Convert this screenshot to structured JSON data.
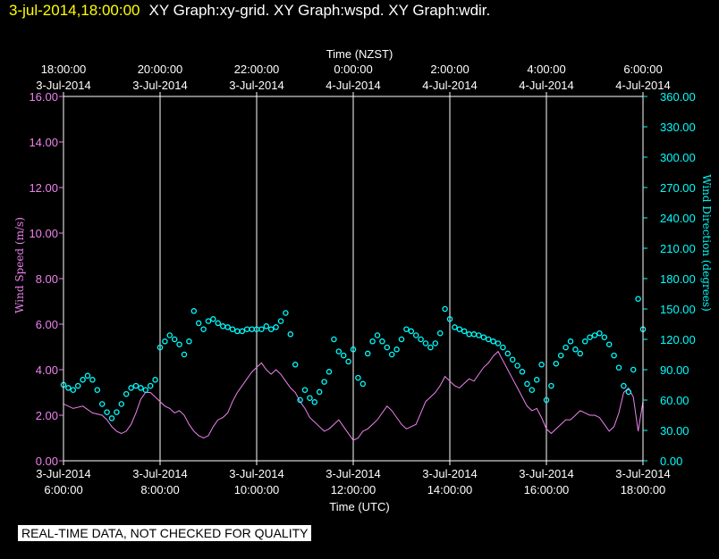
{
  "header": {
    "timestamp": "3-jul-2014,18:00:00",
    "graph_titles": "XY Graph:xy-grid.  XY Graph:wspd.  XY Graph:wdir."
  },
  "footer": {
    "notice": "REAL-TIME DATA, NOT CHECKED FOR QUALITY"
  },
  "colors": {
    "wspd": "#ee82ee",
    "wdir": "#00ffff",
    "grid": "#ffffff",
    "frame": "#ffffff",
    "background": "#000000"
  },
  "chart_data": {
    "type": "scatter",
    "title": "",
    "top_axis": {
      "label": "Time (NZST)",
      "ticks": [
        {
          "time": "18:00:00",
          "date": "3-Jul-2014",
          "x": 6
        },
        {
          "time": "20:00:00",
          "date": "3-Jul-2014",
          "x": 8
        },
        {
          "time": "22:00:00",
          "date": "3-Jul-2014",
          "x": 10
        },
        {
          "time": "0:00:00",
          "date": "4-Jul-2014",
          "x": 12
        },
        {
          "time": "2:00:00",
          "date": "4-Jul-2014",
          "x": 14
        },
        {
          "time": "4:00:00",
          "date": "4-Jul-2014",
          "x": 16
        },
        {
          "time": "6:00:00",
          "date": "4-Jul-2014",
          "x": 18
        }
      ]
    },
    "bottom_axis": {
      "label": "Time (UTC)",
      "ticks": [
        {
          "date": "3-Jul-2014",
          "time": "6:00:00",
          "x": 6
        },
        {
          "date": "3-Jul-2014",
          "time": "8:00:00",
          "x": 8
        },
        {
          "date": "3-Jul-2014",
          "time": "10:00:00",
          "x": 10
        },
        {
          "date": "3-Jul-2014",
          "time": "12:00:00",
          "x": 12
        },
        {
          "date": "3-Jul-2014",
          "time": "14:00:00",
          "x": 14
        },
        {
          "date": "3-Jul-2014",
          "time": "16:00:00",
          "x": 16
        },
        {
          "date": "3-Jul-2014",
          "time": "18:00:00",
          "x": 18
        }
      ]
    },
    "xlim": [
      6,
      18
    ],
    "y_left": {
      "label": "Wind Speed (m/s)",
      "range": [
        0,
        16
      ],
      "ticks": [
        "0.00",
        "2.00",
        "4.00",
        "6.00",
        "8.00",
        "10.00",
        "12.00",
        "14.00",
        "16.00"
      ]
    },
    "y_right": {
      "label": "Wind Direction (degrees)",
      "range": [
        0,
        360
      ],
      "ticks": [
        "0.00",
        "30.00",
        "60.00",
        "90.00",
        "120.00",
        "150.00",
        "180.00",
        "210.00",
        "240.00",
        "270.00",
        "300.00",
        "330.00",
        "360.00"
      ]
    },
    "grid": {
      "vertical": true,
      "horizontal": false
    },
    "series": [
      {
        "key": "wspd",
        "style": "line",
        "axis": "left",
        "points": [
          [
            6.0,
            2.5
          ],
          [
            6.2,
            2.3
          ],
          [
            6.4,
            2.4
          ],
          [
            6.6,
            2.1
          ],
          [
            6.8,
            2.0
          ],
          [
            6.9,
            1.8
          ],
          [
            7.0,
            1.5
          ],
          [
            7.1,
            1.3
          ],
          [
            7.2,
            1.2
          ],
          [
            7.3,
            1.3
          ],
          [
            7.4,
            1.6
          ],
          [
            7.5,
            2.1
          ],
          [
            7.6,
            2.7
          ],
          [
            7.7,
            3.0
          ],
          [
            7.8,
            3.0
          ],
          [
            7.9,
            2.8
          ],
          [
            8.0,
            2.6
          ],
          [
            8.1,
            2.4
          ],
          [
            8.2,
            2.3
          ],
          [
            8.3,
            2.1
          ],
          [
            8.4,
            2.2
          ],
          [
            8.5,
            2.0
          ],
          [
            8.6,
            1.6
          ],
          [
            8.7,
            1.3
          ],
          [
            8.8,
            1.1
          ],
          [
            8.9,
            1.0
          ],
          [
            9.0,
            1.1
          ],
          [
            9.1,
            1.5
          ],
          [
            9.2,
            1.8
          ],
          [
            9.3,
            1.9
          ],
          [
            9.4,
            2.1
          ],
          [
            9.5,
            2.6
          ],
          [
            9.6,
            3.0
          ],
          [
            9.7,
            3.3
          ],
          [
            9.8,
            3.6
          ],
          [
            9.9,
            3.9
          ],
          [
            10.0,
            4.1
          ],
          [
            10.1,
            4.3
          ],
          [
            10.2,
            4.0
          ],
          [
            10.3,
            3.8
          ],
          [
            10.4,
            4.0
          ],
          [
            10.5,
            3.8
          ],
          [
            10.6,
            3.5
          ],
          [
            10.7,
            3.2
          ],
          [
            10.8,
            3.0
          ],
          [
            10.9,
            2.6
          ],
          [
            11.0,
            2.3
          ],
          [
            11.1,
            1.9
          ],
          [
            11.2,
            1.7
          ],
          [
            11.3,
            1.5
          ],
          [
            11.4,
            1.3
          ],
          [
            11.5,
            1.4
          ],
          [
            11.6,
            1.6
          ],
          [
            11.7,
            1.8
          ],
          [
            11.8,
            1.5
          ],
          [
            11.9,
            1.2
          ],
          [
            12.0,
            0.9
          ],
          [
            12.1,
            1.0
          ],
          [
            12.2,
            1.3
          ],
          [
            12.3,
            1.4
          ],
          [
            12.4,
            1.6
          ],
          [
            12.5,
            1.8
          ],
          [
            12.6,
            2.1
          ],
          [
            12.7,
            2.4
          ],
          [
            12.8,
            2.2
          ],
          [
            12.9,
            1.9
          ],
          [
            13.0,
            1.6
          ],
          [
            13.1,
            1.4
          ],
          [
            13.2,
            1.5
          ],
          [
            13.3,
            1.6
          ],
          [
            13.4,
            2.1
          ],
          [
            13.5,
            2.6
          ],
          [
            13.6,
            2.8
          ],
          [
            13.7,
            3.0
          ],
          [
            13.8,
            3.3
          ],
          [
            13.9,
            3.7
          ],
          [
            14.0,
            3.5
          ],
          [
            14.1,
            3.3
          ],
          [
            14.2,
            3.2
          ],
          [
            14.3,
            3.4
          ],
          [
            14.4,
            3.6
          ],
          [
            14.5,
            3.5
          ],
          [
            14.6,
            3.8
          ],
          [
            14.7,
            4.1
          ],
          [
            14.8,
            4.3
          ],
          [
            14.9,
            4.6
          ],
          [
            15.0,
            4.8
          ],
          [
            15.1,
            4.4
          ],
          [
            15.2,
            4.0
          ],
          [
            15.3,
            3.6
          ],
          [
            15.4,
            3.2
          ],
          [
            15.5,
            2.8
          ],
          [
            15.6,
            2.4
          ],
          [
            15.7,
            2.2
          ],
          [
            15.8,
            2.3
          ],
          [
            15.9,
            1.9
          ],
          [
            16.0,
            1.4
          ],
          [
            16.1,
            1.2
          ],
          [
            16.2,
            1.4
          ],
          [
            16.3,
            1.6
          ],
          [
            16.4,
            1.8
          ],
          [
            16.5,
            1.8
          ],
          [
            16.6,
            2.0
          ],
          [
            16.7,
            2.2
          ],
          [
            16.8,
            2.1
          ],
          [
            16.9,
            2.0
          ],
          [
            17.0,
            2.0
          ],
          [
            17.1,
            1.9
          ],
          [
            17.2,
            1.6
          ],
          [
            17.3,
            1.3
          ],
          [
            17.4,
            1.5
          ],
          [
            17.5,
            2.1
          ],
          [
            17.6,
            3.0
          ],
          [
            17.7,
            3.2
          ],
          [
            17.8,
            2.8
          ],
          [
            17.9,
            1.3
          ],
          [
            18.0,
            2.6
          ]
        ]
      },
      {
        "key": "wdir",
        "style": "markers",
        "axis": "right",
        "points": [
          [
            6.0,
            75
          ],
          [
            6.1,
            72
          ],
          [
            6.2,
            70
          ],
          [
            6.3,
            74
          ],
          [
            6.4,
            80
          ],
          [
            6.5,
            84
          ],
          [
            6.6,
            80
          ],
          [
            6.7,
            70
          ],
          [
            6.8,
            56
          ],
          [
            6.9,
            48
          ],
          [
            7.0,
            42
          ],
          [
            7.1,
            48
          ],
          [
            7.2,
            56
          ],
          [
            7.3,
            66
          ],
          [
            7.4,
            72
          ],
          [
            7.5,
            74
          ],
          [
            7.6,
            72
          ],
          [
            7.7,
            70
          ],
          [
            7.8,
            74
          ],
          [
            7.9,
            80
          ],
          [
            8.0,
            112
          ],
          [
            8.1,
            118
          ],
          [
            8.2,
            124
          ],
          [
            8.3,
            120
          ],
          [
            8.4,
            115
          ],
          [
            8.5,
            105
          ],
          [
            8.6,
            118
          ],
          [
            8.7,
            148
          ],
          [
            8.8,
            136
          ],
          [
            8.9,
            130
          ],
          [
            9.0,
            138
          ],
          [
            9.1,
            140
          ],
          [
            9.2,
            136
          ],
          [
            9.3,
            133
          ],
          [
            9.4,
            132
          ],
          [
            9.5,
            130
          ],
          [
            9.6,
            128
          ],
          [
            9.7,
            128
          ],
          [
            9.8,
            130
          ],
          [
            9.9,
            130
          ],
          [
            10.0,
            130
          ],
          [
            10.1,
            130
          ],
          [
            10.2,
            133
          ],
          [
            10.3,
            130
          ],
          [
            10.4,
            132
          ],
          [
            10.5,
            138
          ],
          [
            10.6,
            146
          ],
          [
            10.7,
            125
          ],
          [
            10.8,
            95
          ],
          [
            10.9,
            60
          ],
          [
            11.0,
            70
          ],
          [
            11.1,
            62
          ],
          [
            11.2,
            58
          ],
          [
            11.3,
            68
          ],
          [
            11.4,
            78
          ],
          [
            11.5,
            88
          ],
          [
            11.6,
            120
          ],
          [
            11.7,
            108
          ],
          [
            11.8,
            104
          ],
          [
            11.9,
            98
          ],
          [
            12.0,
            110
          ],
          [
            12.1,
            82
          ],
          [
            12.2,
            76
          ],
          [
            12.3,
            106
          ],
          [
            12.4,
            118
          ],
          [
            12.5,
            124
          ],
          [
            12.6,
            118
          ],
          [
            12.7,
            112
          ],
          [
            12.8,
            105
          ],
          [
            12.9,
            110
          ],
          [
            13.0,
            120
          ],
          [
            13.1,
            130
          ],
          [
            13.2,
            128
          ],
          [
            13.3,
            124
          ],
          [
            13.4,
            120
          ],
          [
            13.5,
            116
          ],
          [
            13.6,
            112
          ],
          [
            13.7,
            116
          ],
          [
            13.8,
            126
          ],
          [
            13.9,
            150
          ],
          [
            14.0,
            140
          ],
          [
            14.1,
            132
          ],
          [
            14.2,
            130
          ],
          [
            14.3,
            128
          ],
          [
            14.4,
            125
          ],
          [
            14.5,
            125
          ],
          [
            14.6,
            124
          ],
          [
            14.7,
            122
          ],
          [
            14.8,
            120
          ],
          [
            14.9,
            118
          ],
          [
            15.0,
            116
          ],
          [
            15.1,
            112
          ],
          [
            15.2,
            106
          ],
          [
            15.3,
            100
          ],
          [
            15.4,
            94
          ],
          [
            15.5,
            88
          ],
          [
            15.6,
            76
          ],
          [
            15.7,
            70
          ],
          [
            15.8,
            80
          ],
          [
            15.9,
            95
          ],
          [
            16.0,
            60
          ],
          [
            16.1,
            74
          ],
          [
            16.2,
            96
          ],
          [
            16.3,
            104
          ],
          [
            16.4,
            112
          ],
          [
            16.5,
            118
          ],
          [
            16.6,
            110
          ],
          [
            16.7,
            106
          ],
          [
            16.8,
            118
          ],
          [
            16.9,
            122
          ],
          [
            17.0,
            124
          ],
          [
            17.1,
            126
          ],
          [
            17.2,
            122
          ],
          [
            17.3,
            115
          ],
          [
            17.4,
            104
          ],
          [
            17.5,
            92
          ],
          [
            17.6,
            74
          ],
          [
            17.7,
            68
          ],
          [
            17.8,
            90
          ],
          [
            17.9,
            160
          ],
          [
            18.0,
            130
          ]
        ]
      }
    ]
  }
}
